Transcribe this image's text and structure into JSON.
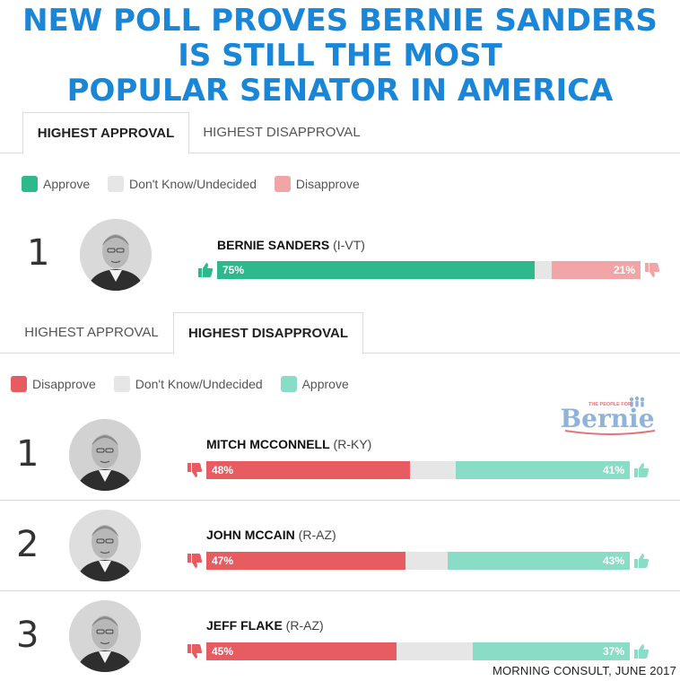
{
  "headline": {
    "line1": "NEW POLL PROVES BERNIE SANDERS",
    "line2": "IS STILL THE MOST",
    "line3": "POPULAR SENATOR IN AMERICA"
  },
  "colors": {
    "approve_dark": "#2db98b",
    "approve_light": "#89dcc6",
    "disapprove_dark": "#e65c61",
    "disapprove_light": "#f2a5a7",
    "undecided": "#e6e6e6",
    "headline": "#1a86d8"
  },
  "panel_approval": {
    "tabs": {
      "approval": "HIGHEST APPROVAL",
      "disapproval": "HIGHEST DISAPPROVAL"
    },
    "legend": {
      "approve": "Approve",
      "undecided": "Don't Know/Undecided",
      "disapprove": "Disapprove"
    }
  },
  "panel_disapproval": {
    "tabs": {
      "approval": "HIGHEST APPROVAL",
      "disapproval": "HIGHEST DISAPPROVAL"
    },
    "legend": {
      "disapprove": "Disapprove",
      "undecided": "Don't Know/Undecided",
      "approve": "Approve"
    }
  },
  "logo": {
    "small": "THE PEOPLE FOR",
    "big": "Bernie",
    "icon": "people-icon"
  },
  "source": "MORNING CONSULT, JUNE 2017",
  "chart_data": [
    {
      "type": "bar",
      "orientation": "horizontal-stacked",
      "categories": [
        "BERNIE SANDERS (I-VT)"
      ],
      "rows": [
        {
          "rank": "1",
          "name": "BERNIE SANDERS",
          "party": "(I-VT)",
          "approve": 75,
          "undecided": 4,
          "disapprove": 21,
          "approve_label": "75%",
          "disapprove_label": "21%"
        }
      ],
      "series": [
        {
          "name": "Approve",
          "values": [
            75
          ]
        },
        {
          "name": "Don't Know/Undecided",
          "values": [
            4
          ]
        },
        {
          "name": "Disapprove",
          "values": [
            21
          ]
        }
      ],
      "xlim": [
        0,
        100
      ],
      "legend_position": "top-left"
    },
    {
      "type": "bar",
      "orientation": "horizontal-stacked",
      "categories": [
        "MITCH MCCONNELL (R-KY)",
        "JOHN MCCAIN (R-AZ)",
        "JEFF FLAKE (R-AZ)"
      ],
      "rows": [
        {
          "rank": "1",
          "name": "MITCH MCCONNELL",
          "party": "(R-KY)",
          "disapprove": 48,
          "undecided": 11,
          "approve": 41,
          "disapprove_label": "48%",
          "approve_label": "41%"
        },
        {
          "rank": "2",
          "name": "JOHN MCCAIN",
          "party": "(R-AZ)",
          "disapprove": 47,
          "undecided": 10,
          "approve": 43,
          "disapprove_label": "47%",
          "approve_label": "43%"
        },
        {
          "rank": "3",
          "name": "JEFF FLAKE",
          "party": "(R-AZ)",
          "disapprove": 45,
          "undecided": 18,
          "approve": 37,
          "disapprove_label": "45%",
          "approve_label": "37%"
        }
      ],
      "series": [
        {
          "name": "Disapprove",
          "values": [
            48,
            47,
            45
          ]
        },
        {
          "name": "Don't Know/Undecided",
          "values": [
            11,
            10,
            18
          ]
        },
        {
          "name": "Approve",
          "values": [
            41,
            43,
            37
          ]
        }
      ],
      "xlim": [
        0,
        100
      ],
      "legend_position": "top-left"
    }
  ]
}
